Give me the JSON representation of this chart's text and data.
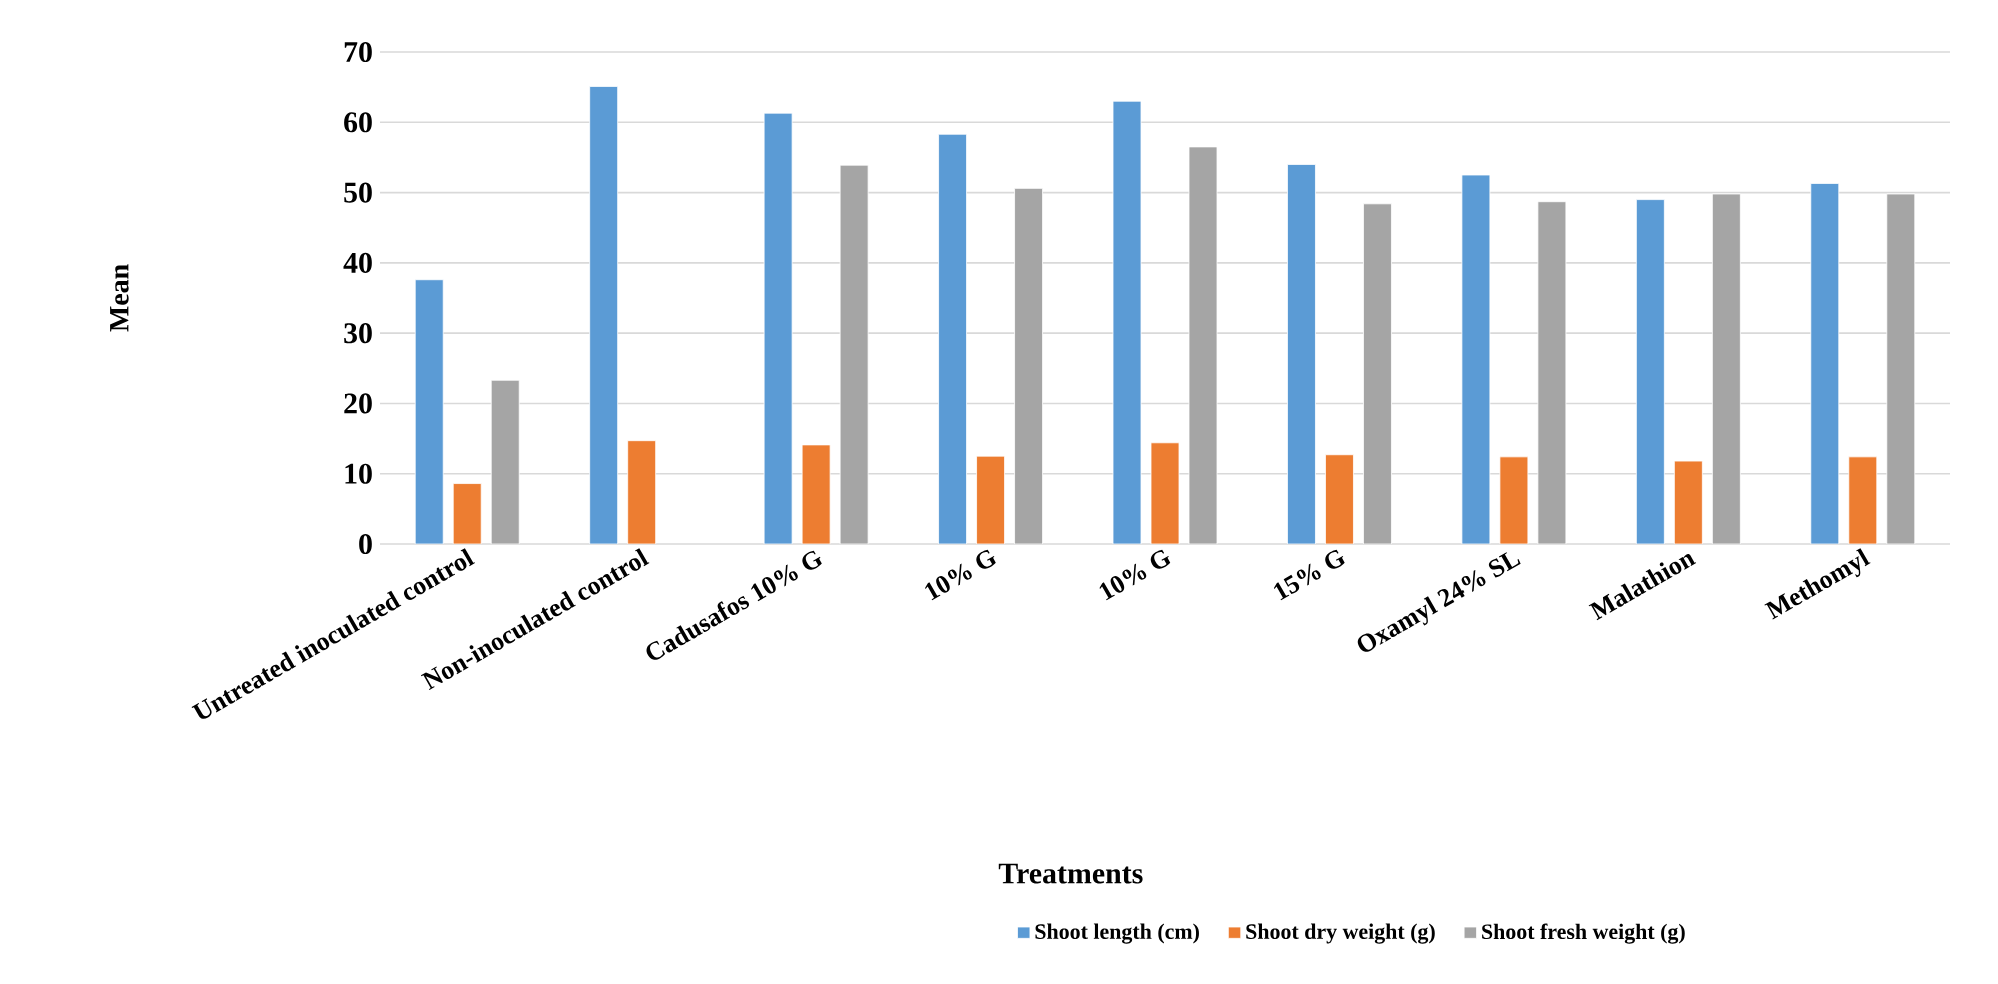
{
  "chart_data": {
    "type": "bar",
    "xlabel": "Treatments",
    "ylabel": "Mean",
    "categories": [
      "Untreated inoculated control",
      "Non-inoculated control",
      "Cadusafos 10% G",
      "10% G",
      "10% G",
      "15% G",
      "Oxamyl 24% SL",
      "Malathion",
      "Methomyl"
    ],
    "series": [
      {
        "name": "Shoot length (cm)",
        "color": "#5b9bd5",
        "values": [
          37.6,
          65.1,
          61.3,
          58.3,
          63.0,
          54.0,
          52.5,
          49.0,
          51.3
        ]
      },
      {
        "name": "Shoot dry weight (g)",
        "color": "#ed7d31",
        "values": [
          8.6,
          14.7,
          14.1,
          12.5,
          14.4,
          12.7,
          12.4,
          11.8,
          12.4
        ]
      },
      {
        "name": "Shoot fresh weight (g)",
        "color": "#a5a5a5",
        "values": [
          23.3,
          null,
          53.9,
          50.6,
          56.5,
          48.4,
          48.7,
          49.8,
          49.8
        ]
      }
    ],
    "ylim": [
      0,
      70
    ],
    "yticks": [
      0,
      10,
      20,
      30,
      40,
      50,
      60,
      70
    ],
    "grid": "y",
    "legend": "bottom"
  }
}
